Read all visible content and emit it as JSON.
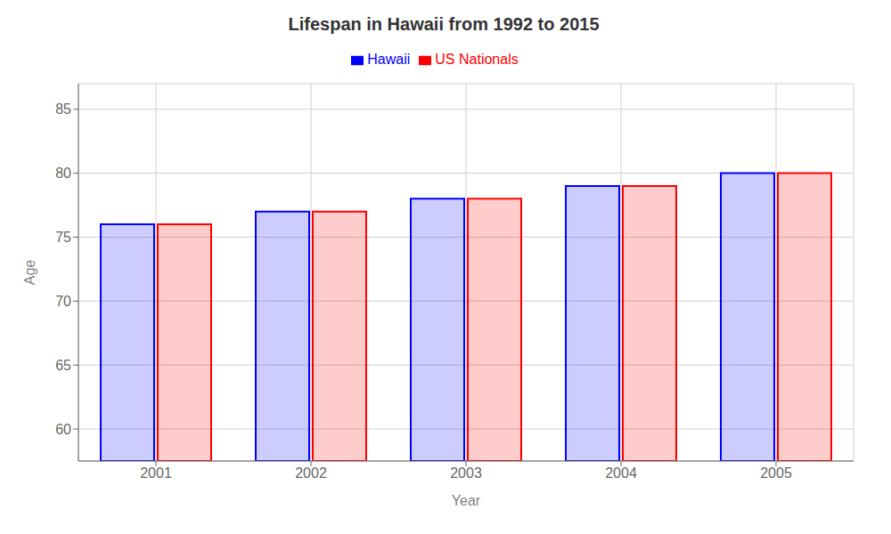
{
  "chart_data": {
    "type": "bar",
    "title": "Lifespan in Hawaii from 1992 to 2015",
    "x_label": "Year",
    "y_label": "Age",
    "categories": [
      "2001",
      "2002",
      "2003",
      "2004",
      "2005"
    ],
    "series": [
      {
        "name": "Hawaii",
        "color": "#0000ff",
        "values": [
          76,
          77,
          78,
          79,
          80
        ]
      },
      {
        "name": "US Nationals",
        "color": "#ff0000",
        "values": [
          76,
          77,
          78,
          79,
          80
        ]
      }
    ],
    "ylim": [
      57.5,
      87
    ],
    "yticks": [
      60,
      65,
      70,
      75,
      80,
      85
    ],
    "grid": true,
    "legend": "top"
  }
}
